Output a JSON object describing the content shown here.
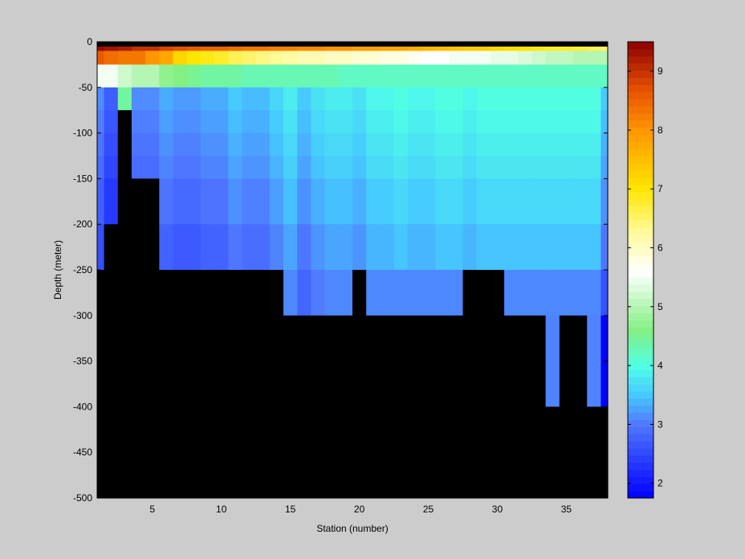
{
  "chart_data": {
    "type": "heatmap",
    "title": "",
    "xlabel": "Station (number)",
    "ylabel": "Depth (meter)",
    "xlim": [
      1,
      38
    ],
    "ylim": [
      -500,
      0
    ],
    "x_ticks": [
      5,
      10,
      15,
      20,
      25,
      30,
      35
    ],
    "y_ticks": [
      0,
      -50,
      -100,
      -150,
      -200,
      -250,
      -300,
      -350,
      -400,
      -450,
      -500
    ],
    "depth_levels": [
      0,
      -10,
      -25,
      -50,
      -75,
      -100,
      -125,
      -150,
      -200,
      -250,
      -300,
      -400,
      -500
    ],
    "stations": [
      1,
      2,
      3,
      4,
      5,
      6,
      7,
      8,
      9,
      10,
      11,
      12,
      13,
      14,
      15,
      16,
      17,
      18,
      19,
      20,
      21,
      22,
      23,
      24,
      25,
      26,
      27,
      28,
      29,
      30,
      31,
      32,
      33,
      34,
      35,
      36,
      37,
      38
    ],
    "no_data_color": "#000000",
    "colorbar": {
      "range": [
        1.75,
        9.5
      ],
      "ticks": [
        2,
        3,
        4,
        5,
        6,
        7,
        8,
        9
      ],
      "colormap": "jet-like (blue-cyan-green-white-yellow-orange-red)"
    },
    "top_band_values": [
      9.4,
      9.3,
      9.2,
      9.0,
      9.0,
      8.8,
      8.7,
      8.6,
      8.5,
      8.5,
      8.4,
      8.3,
      8.3,
      8.2,
      8.2,
      8.1,
      8.1,
      8.0,
      8.0,
      7.9,
      7.9,
      7.8,
      7.8,
      7.7,
      7.6,
      7.5,
      7.4,
      7.3,
      7.3,
      7.2,
      7.1,
      7.0,
      6.9,
      6.8,
      6.8,
      6.7,
      6.6,
      6.5
    ],
    "band2_values": [
      8.6,
      8.4,
      8.3,
      8.3,
      8.0,
      7.8,
      7.2,
      7.0,
      6.9,
      6.8,
      6.6,
      6.5,
      6.4,
      6.3,
      6.2,
      6.1,
      6.1,
      6.0,
      6.0,
      5.9,
      5.9,
      5.8,
      5.8,
      5.7,
      5.6,
      5.6,
      5.5,
      5.5,
      5.5,
      5.4,
      5.4,
      5.3,
      5.2,
      5.1,
      5.1,
      5.0,
      5.0,
      5.0
    ],
    "band3_values": [
      5.5,
      5.5,
      5.2,
      5.0,
      5.0,
      4.7,
      4.6,
      4.5,
      4.4,
      4.4,
      4.4,
      4.3,
      4.3,
      4.3,
      4.3,
      4.3,
      4.3,
      4.3,
      4.2,
      4.2,
      4.2,
      4.2,
      4.2,
      4.2,
      4.2,
      4.2,
      4.2,
      4.2,
      4.2,
      4.2,
      4.2,
      4.2,
      4.2,
      4.2,
      4.2,
      4.2,
      4.2,
      4.2
    ],
    "deep_profile_note": "values 1.75-4.5 below -75 m; black = no data (below sea floor)"
  }
}
